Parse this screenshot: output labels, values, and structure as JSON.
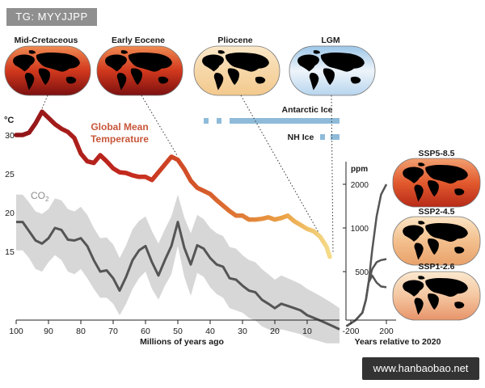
{
  "watermark": "TG: MYYJJPP",
  "site_badge": "www.hanbaobao.net",
  "colors": {
    "temp_warm": "#8f1418",
    "temp_mid": "#d65a2a",
    "temp_cool": "#f1c56a",
    "co2_line": "#555555",
    "co2_band": "#d7d7d7",
    "ice_bar": "#8fbbd9",
    "temp_label": "#c8563a",
    "co2_label": "#8c8c8c"
  },
  "maps": [
    {
      "label": "Mid-Cretaceous",
      "style": "hot",
      "icon": "world-map-icon"
    },
    {
      "label": "Early Eocene",
      "style": "hot",
      "icon": "world-map-icon"
    },
    {
      "label": "Pliocene",
      "style": "warm",
      "icon": "world-map-icon"
    },
    {
      "label": "LGM",
      "style": "cold",
      "icon": "world-map-icon"
    }
  ],
  "future_maps": [
    {
      "label": "SSP5-8.5",
      "style": "hot",
      "icon": "world-map-icon"
    },
    {
      "label": "SSP2-4.5",
      "style": "warm",
      "icon": "world-map-icon"
    },
    {
      "label": "SSP1-2.6",
      "style": "mild",
      "icon": "world-map-icon"
    }
  ],
  "chart_data": {
    "type": "line",
    "xlabel": "Millions of years ago",
    "x_ticks": [
      100,
      90,
      80,
      70,
      60,
      50,
      40,
      30,
      20,
      10
    ],
    "xlim": [
      100,
      0
    ],
    "temp_unit": "°C",
    "temp_ticks": [
      30,
      25,
      20,
      15
    ],
    "ppm_unit": "ppm",
    "ppm_ticks": [
      2000,
      1000,
      500
    ],
    "series": [
      {
        "name": "Global Mean Temperature",
        "unit": "°C",
        "x": [
          100,
          98,
          96,
          94,
          92,
          90,
          88,
          86,
          84,
          82,
          80,
          78,
          76,
          74,
          72,
          70,
          68,
          66,
          64,
          62,
          60,
          58,
          56,
          54,
          52,
          50,
          48,
          46,
          44,
          42,
          40,
          38,
          36,
          34,
          32,
          30,
          28,
          26,
          24,
          22,
          20,
          18,
          16,
          14,
          12,
          10,
          8,
          6,
          4,
          3
        ],
        "values": [
          30,
          30,
          30.3,
          31.5,
          33,
          32.2,
          31.4,
          30.8,
          30.4,
          29.6,
          27.6,
          26.6,
          26.4,
          27.4,
          26.6,
          25.7,
          25.2,
          25.1,
          24.8,
          24.6,
          24.6,
          24.2,
          25.2,
          26.2,
          27.2,
          26.8,
          25.6,
          24.1,
          23.2,
          22.8,
          22.4,
          21.6,
          20.9,
          20.2,
          19.6,
          19.6,
          19.1,
          19.1,
          19.2,
          19.4,
          19.1,
          19.3,
          19.6,
          18.9,
          18.4,
          17.9,
          17.6,
          16.9,
          15.6,
          14.3
        ]
      },
      {
        "name": "CO2",
        "unit": "ppm",
        "x": [
          100,
          98,
          96,
          94,
          92,
          90,
          88,
          86,
          84,
          82,
          80,
          78,
          76,
          74,
          72,
          70,
          68,
          66,
          64,
          62,
          60,
          58,
          56,
          54,
          52,
          50,
          48,
          46,
          44,
          42,
          40,
          38,
          36,
          34,
          32,
          30,
          28,
          26,
          24,
          22,
          20,
          18,
          16,
          14,
          12,
          10,
          8,
          6,
          4,
          2,
          0
        ],
        "values": [
          1100,
          1100,
          950,
          820,
          780,
          850,
          1000,
          970,
          830,
          820,
          850,
          750,
          600,
          500,
          510,
          450,
          370,
          460,
          600,
          700,
          750,
          580,
          470,
          600,
          750,
          1100,
          730,
          560,
          760,
          720,
          620,
          560,
          540,
          450,
          440,
          400,
          370,
          360,
          320,
          300,
          280,
          300,
          290,
          280,
          270,
          250,
          240,
          230,
          220,
          210,
          200
        ],
        "band_low": [
          700,
          700,
          620,
          520,
          500,
          580,
          650,
          600,
          500,
          480,
          520,
          450,
          380,
          330,
          330,
          300,
          250,
          300,
          380,
          450,
          500,
          380,
          320,
          400,
          480,
          750,
          460,
          340,
          490,
          460,
          390,
          350,
          330,
          280,
          270,
          260,
          240,
          230,
          210,
          200,
          190,
          200,
          195,
          190,
          185,
          175,
          170,
          165,
          160,
          160,
          160
        ],
        "band_high": [
          1700,
          1700,
          1500,
          1300,
          1250,
          1350,
          1600,
          1550,
          1350,
          1300,
          1400,
          1230,
          1000,
          850,
          860,
          770,
          620,
          760,
          980,
          1120,
          1200,
          950,
          780,
          980,
          1200,
          1700,
          1180,
          920,
          1230,
          1150,
          1000,
          920,
          880,
          740,
          720,
          650,
          600,
          580,
          520,
          480,
          440,
          470,
          450,
          430,
          410,
          380,
          360,
          340,
          320,
          300,
          280
        ]
      }
    ],
    "ice": [
      {
        "name": "Antarctic Ice",
        "segments": [
          [
            42,
            40.5
          ],
          [
            38,
            36.5
          ],
          [
            34,
            0
          ]
        ]
      },
      {
        "name": "NH Ice",
        "segments": [
          [
            6,
            4.5
          ],
          [
            2.8,
            0
          ]
        ]
      }
    ],
    "future": {
      "xlabel": "Years relative to 2020",
      "x_ticks": [
        -200,
        200
      ],
      "xlim": [
        -250,
        220
      ],
      "series": [
        {
          "name": "SSP5-8.5",
          "x": [
            -250,
            -150,
            -70,
            -30,
            0,
            40,
            90,
            140,
            200
          ],
          "values": [
            210,
            230,
            260,
            320,
            420,
            700,
            1200,
            1700,
            2000
          ]
        },
        {
          "name": "SSP2-4.5",
          "x": [
            -250,
            -150,
            -70,
            -30,
            0,
            40,
            90,
            140,
            200
          ],
          "values": [
            210,
            230,
            260,
            320,
            420,
            520,
            580,
            600,
            610
          ]
        },
        {
          "name": "SSP1-2.6",
          "x": [
            -250,
            -150,
            -70,
            -30,
            0,
            40,
            90,
            140,
            200
          ],
          "values": [
            210,
            230,
            260,
            320,
            420,
            470,
            420,
            395,
            390
          ]
        }
      ]
    }
  }
}
